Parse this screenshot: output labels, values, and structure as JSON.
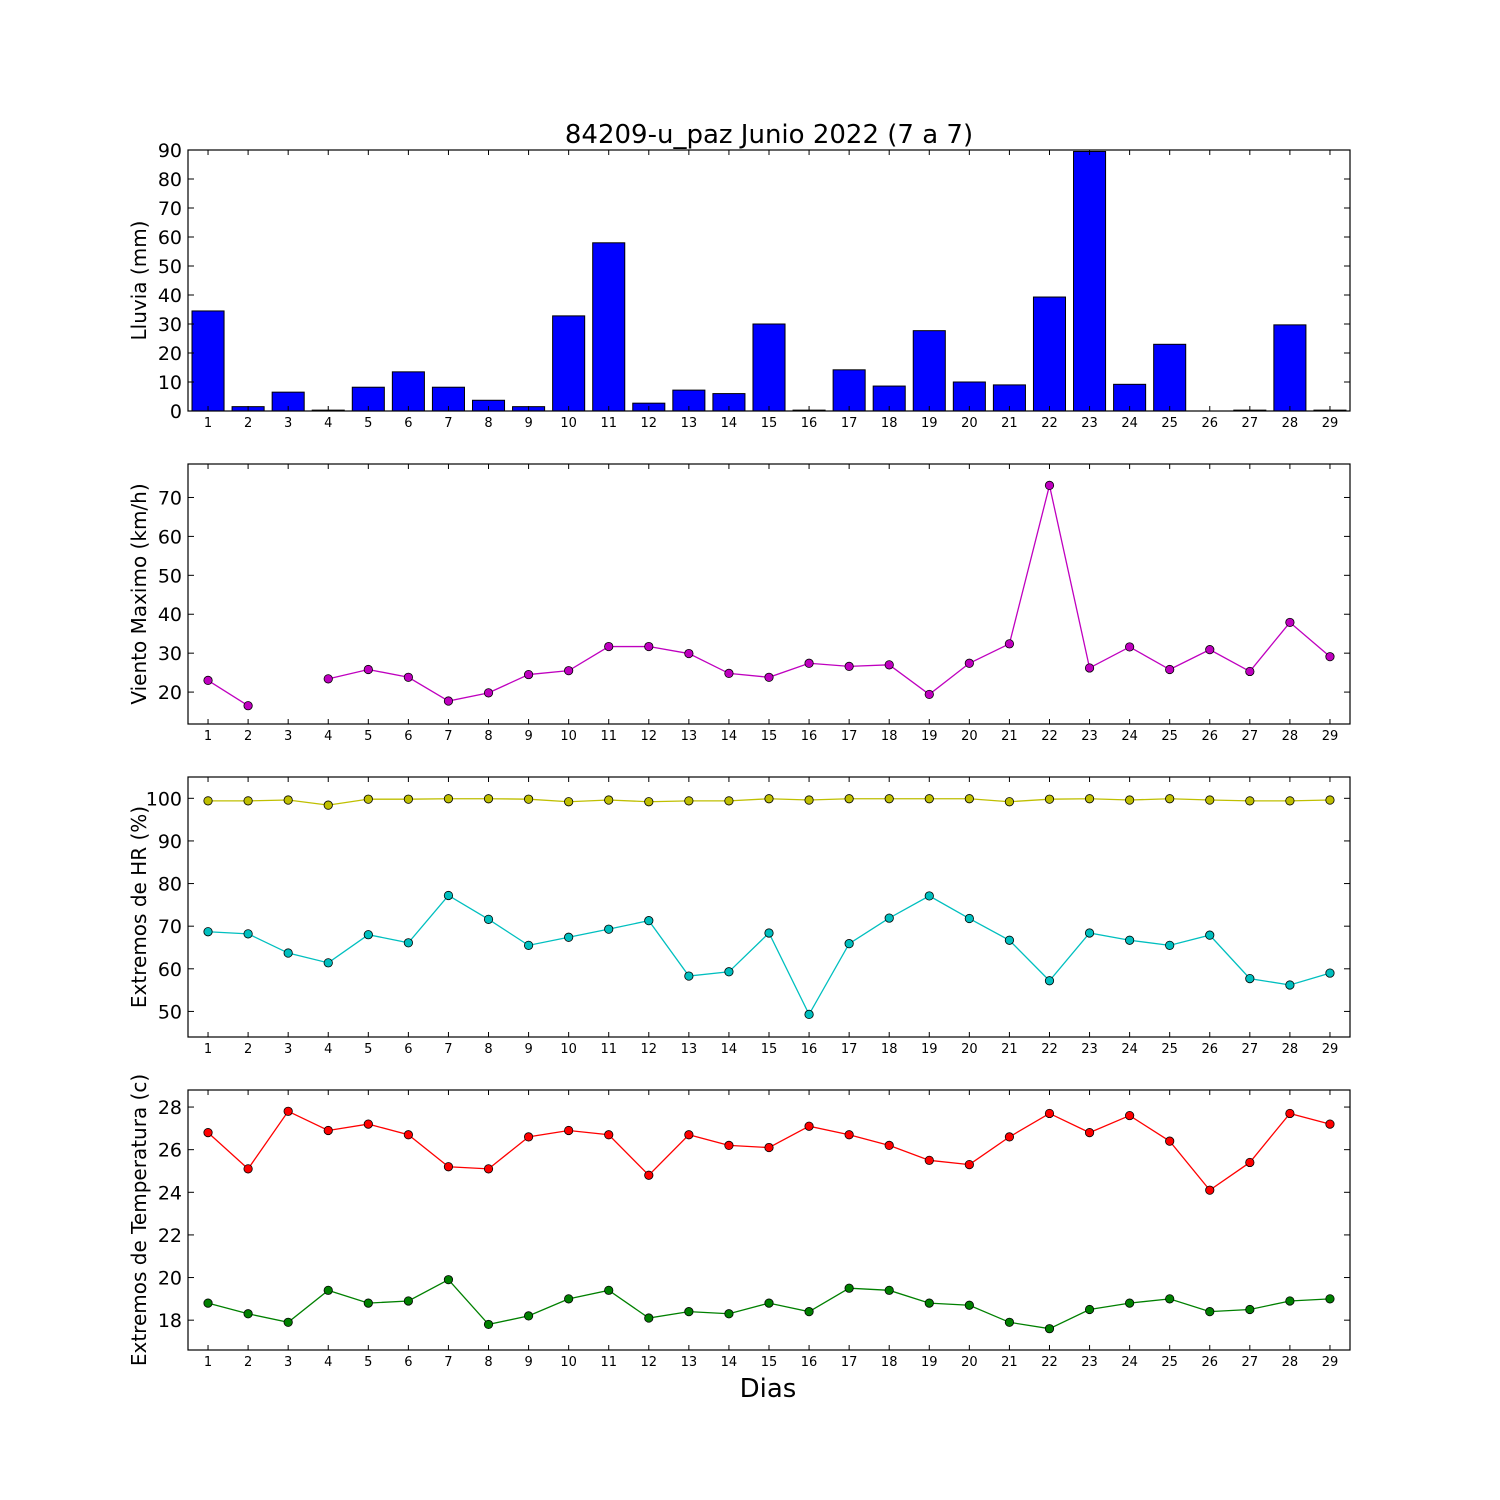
{
  "title": "84209-u_paz Junio 2022  (7 a 7)",
  "xlabel": "Dias",
  "chart_data": [
    {
      "type": "bar",
      "ylabel": "Lluvia (mm)",
      "ylim": [
        0,
        90
      ],
      "yticks": [
        0,
        10,
        20,
        30,
        40,
        50,
        60,
        70,
        80,
        90
      ],
      "categories": [
        1,
        2,
        3,
        4,
        5,
        6,
        7,
        8,
        9,
        10,
        11,
        12,
        13,
        14,
        15,
        16,
        17,
        18,
        19,
        20,
        21,
        22,
        23,
        24,
        25,
        26,
        27,
        28,
        29
      ],
      "series": [
        {
          "color": "#0000ff",
          "values": [
            34.5,
            1.5,
            6.5,
            0.3,
            8.2,
            13.5,
            8.2,
            3.7,
            1.5,
            32.8,
            58,
            2.7,
            7.2,
            6,
            30,
            0.3,
            14.2,
            8.6,
            27.7,
            10,
            9,
            39.3,
            89.5,
            9.2,
            23,
            0,
            0.3,
            29.7,
            0.3
          ]
        }
      ]
    },
    {
      "type": "line",
      "ylabel": "Viento Maximo (km/h)",
      "ylim": [
        11.8,
        78.6
      ],
      "yticks": [
        20,
        30,
        40,
        50,
        60,
        70
      ],
      "categories": [
        1,
        2,
        3,
        4,
        5,
        6,
        7,
        8,
        9,
        10,
        11,
        12,
        13,
        14,
        15,
        16,
        17,
        18,
        19,
        20,
        21,
        22,
        23,
        24,
        25,
        26,
        27,
        28,
        29
      ],
      "series": [
        {
          "color": "#bf00bf",
          "values": [
            23,
            16.5,
            null,
            23.4,
            25.8,
            23.8,
            17.7,
            19.8,
            24.5,
            25.5,
            31.7,
            31.7,
            29.9,
            24.8,
            23.8,
            27.4,
            26.6,
            27,
            19.4,
            27.4,
            32.4,
            73.1,
            26.2,
            31.6,
            25.8,
            30.9,
            25.3,
            37.9,
            29.1
          ]
        }
      ]
    },
    {
      "type": "line",
      "ylabel": "Extremos de HR (%)",
      "ylim": [
        44,
        105
      ],
      "yticks": [
        50,
        60,
        70,
        80,
        90,
        100
      ],
      "categories": [
        1,
        2,
        3,
        4,
        5,
        6,
        7,
        8,
        9,
        10,
        11,
        12,
        13,
        14,
        15,
        16,
        17,
        18,
        19,
        20,
        21,
        22,
        23,
        24,
        25,
        26,
        27,
        28,
        29
      ],
      "series": [
        {
          "color": "#bfbf00",
          "values": [
            99.4,
            99.4,
            99.6,
            98.4,
            99.8,
            99.8,
            99.9,
            99.9,
            99.8,
            99.2,
            99.6,
            99.2,
            99.4,
            99.4,
            99.9,
            99.6,
            99.9,
            99.9,
            99.9,
            99.9,
            99.2,
            99.8,
            99.9,
            99.6,
            99.9,
            99.6,
            99.4,
            99.4,
            99.6
          ]
        },
        {
          "color": "#00bfbf",
          "values": [
            68.7,
            68.2,
            63.7,
            61.4,
            68,
            66.1,
            77.2,
            71.6,
            65.5,
            67.4,
            69.3,
            71.3,
            58.3,
            59.3,
            68.4,
            49.3,
            65.9,
            71.9,
            77.1,
            71.8,
            66.7,
            57.2,
            68.4,
            66.7,
            65.5,
            67.9,
            57.7,
            56.2,
            59
          ]
        }
      ]
    },
    {
      "type": "line",
      "ylabel": "Extremos de Temperatura (c)",
      "ylim": [
        16.6,
        28.8
      ],
      "yticks": [
        18,
        20,
        22,
        24,
        26,
        28
      ],
      "categories": [
        1,
        2,
        3,
        4,
        5,
        6,
        7,
        8,
        9,
        10,
        11,
        12,
        13,
        14,
        15,
        16,
        17,
        18,
        19,
        20,
        21,
        22,
        23,
        24,
        25,
        26,
        27,
        28,
        29
      ],
      "series": [
        {
          "color": "#ff0000",
          "values": [
            26.8,
            25.1,
            27.8,
            26.9,
            27.2,
            26.7,
            25.2,
            25.1,
            26.6,
            26.9,
            26.7,
            24.8,
            26.7,
            26.2,
            26.1,
            27.1,
            26.7,
            26.2,
            25.5,
            25.3,
            26.6,
            27.7,
            26.8,
            27.6,
            26.4,
            24.1,
            25.4,
            27.7,
            27.2
          ]
        },
        {
          "color": "#008000",
          "values": [
            18.8,
            18.3,
            17.9,
            19.4,
            18.8,
            18.9,
            19.9,
            17.8,
            18.2,
            19,
            19.4,
            18.1,
            18.4,
            18.3,
            18.8,
            18.4,
            19.5,
            19.4,
            18.8,
            18.7,
            17.9,
            17.6,
            18.5,
            18.8,
            19,
            18.4,
            18.5,
            18.9,
            19
          ]
        }
      ]
    }
  ]
}
